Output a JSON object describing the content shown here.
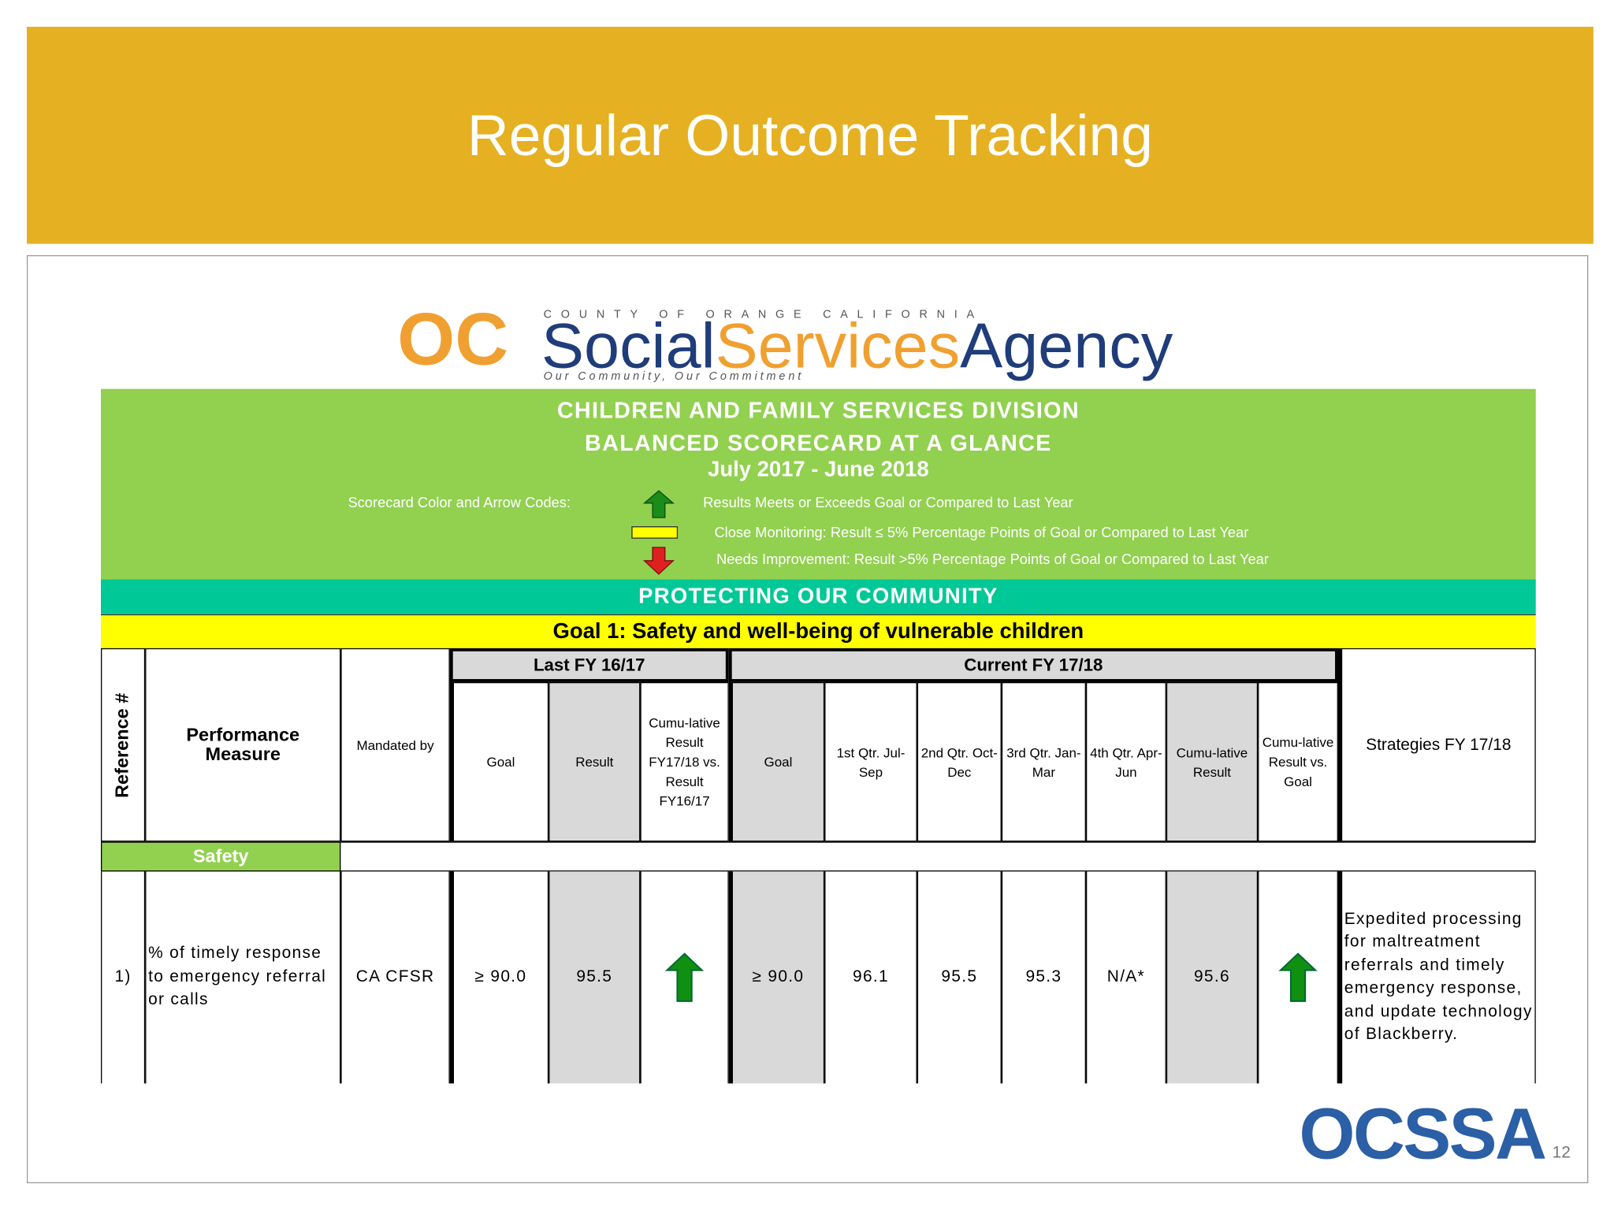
{
  "header": {
    "title": "Regular Outcome Tracking"
  },
  "logo": {
    "mark": "OC",
    "county": "COUNTY OF ORANGE CALIFORNIA",
    "name_parts": [
      "Social",
      "Services",
      "Agency"
    ],
    "tagline": "Our Community, Our Commitment"
  },
  "scorecard": {
    "division": "CHILDREN AND FAMILY SERVICES DIVISION",
    "title": "BALANCED SCORECARD AT A GLANCE",
    "period": "July 2017 - June 2018",
    "legend_label": "Scorecard Color and Arrow Codes:",
    "legend": [
      "Results Meets or Exceeds Goal or Compared to Last Year",
      "Close Monitoring: Result ≤ 5% Percentage Points of Goal or Compared to Last Year",
      "Needs Improvement: Result >5% Percentage Points of Goal or Compared to Last Year"
    ],
    "section": "PROTECTING OUR COMMUNITY",
    "goal": "Goal 1: Safety and well-being of vulnerable children"
  },
  "table": {
    "groups": [
      "Last FY 16/17",
      "Current FY 17/18"
    ],
    "columns": [
      "Reference #",
      "Performance Measure",
      "Mandated by",
      "Goal",
      "Result",
      "Cumu-lative Result FY17/18 vs. Result FY16/17",
      "Goal",
      "1st Qtr. Jul-Sep",
      "2nd Qtr. Oct-Dec",
      "3rd Qtr. Jan-Mar",
      "4th Qtr. Apr-Jun",
      "Cumu-lative Result",
      "Cumu-lative Result vs. Goal",
      "Strategies FY 17/18"
    ],
    "category": "Safety",
    "rows": [
      [
        "1)",
        "% of timely response to emergency referral or calls",
        "CA CFSR",
        "≥ 90.0",
        "95.5",
        "≥ 90.0",
        "96.1",
        "95.5",
        "95.3",
        "N/A*",
        "95.6",
        "Expedited processing for maltreatment referrals and timely emergency response, and update technology of Blackberry."
      ]
    ]
  },
  "footer": {
    "logo": "OCSSA",
    "page": "12"
  }
}
